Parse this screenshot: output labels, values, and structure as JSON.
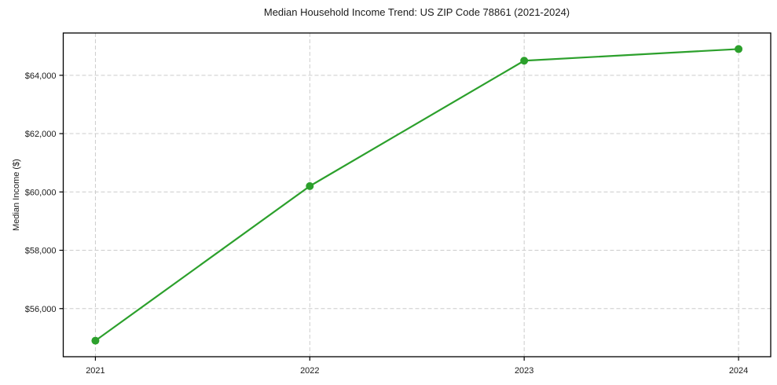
{
  "figure": {
    "background": "#ffffff"
  },
  "chart_data": {
    "type": "line",
    "title": "Median Household Income Trend: US ZIP Code 78861 (2021-2024)",
    "xlabel": "",
    "ylabel": "Median Income ($)",
    "x": [
      2021,
      2022,
      2023,
      2024
    ],
    "x_tick_labels": [
      "2021",
      "2022",
      "2023",
      "2024"
    ],
    "series": [
      {
        "name": "Median Household Income",
        "values": [
          54900,
          60200,
          64500,
          64900
        ],
        "color": "#2ca02c",
        "marker": "circle",
        "line_width": 2.2,
        "marker_size": 5
      }
    ],
    "y_ticks": [
      56000,
      58000,
      60000,
      62000,
      64000
    ],
    "y_tick_labels": [
      "$56,000",
      "$58,000",
      "$60,000",
      "$62,000",
      "$64,000"
    ],
    "xlim": [
      2020.85,
      2024.15
    ],
    "ylim": [
      54350,
      65450
    ],
    "grid": {
      "visible": true,
      "style": "dashed",
      "color": "#cccccc",
      "axes": "both"
    },
    "legend": "none",
    "spine_color": "#000000",
    "text_color": "#1a1a1a"
  }
}
